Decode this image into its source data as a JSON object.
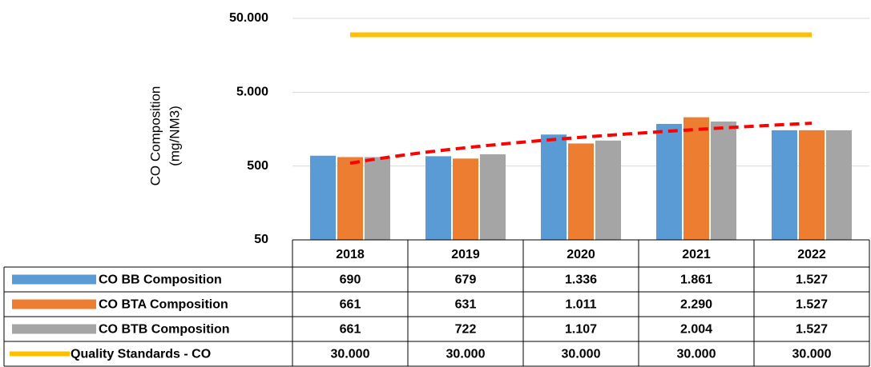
{
  "chart_data": {
    "type": "bar",
    "y_label": [
      "CO Composition",
      "(mg/NM3)"
    ],
    "categories": [
      "2018",
      "2019",
      "2020",
      "2021",
      "2022"
    ],
    "series": [
      {
        "name": "CO BB Composition",
        "color": "#5b9bd5",
        "values": [
          690,
          679,
          1336,
          1861,
          1527
        ],
        "value_labels": [
          "690",
          "679",
          "1.336",
          "1.861",
          "1.527"
        ]
      },
      {
        "name": "CO BTA Composition",
        "color": "#ed7d31",
        "values": [
          661,
          631,
          1011,
          2290,
          1527
        ],
        "value_labels": [
          "661",
          "631",
          "1.011",
          "2.290",
          "1.527"
        ]
      },
      {
        "name": "CO BTB Composition",
        "color": "#a5a5a5",
        "values": [
          661,
          722,
          1107,
          2004,
          1527
        ],
        "value_labels": [
          "661",
          "722",
          "1.107",
          "2.004",
          "1.527"
        ]
      },
      {
        "name": "Quality Standards - CO",
        "color": "#ffc000",
        "type": "line",
        "values": [
          30000,
          30000,
          30000,
          30000,
          30000
        ],
        "value_labels": [
          "30.000",
          "30.000",
          "30.000",
          "30.000",
          "30.000"
        ]
      }
    ],
    "trendline": {
      "series": 1,
      "color": "#ff0000"
    },
    "ylim": [
      50,
      50000
    ],
    "log_y": true,
    "yticks": [
      50,
      500,
      {
        "value": 5000,
        "label": "5.000"
      },
      {
        "value": 50000,
        "label": "50.000"
      }
    ],
    "grid": true
  }
}
